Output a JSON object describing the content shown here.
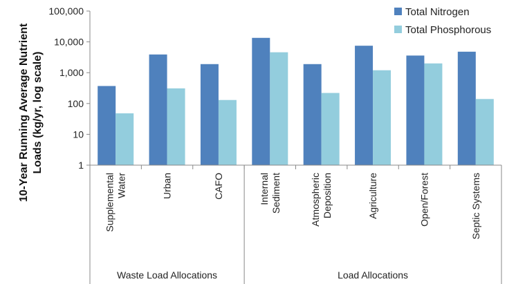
{
  "chart_data": {
    "type": "bar",
    "ylabel": "10-Year Running Average Nutrient Loads (kg/yr, log scale)",
    "ylabel_lines": [
      "10-Year Running Average Nutrient",
      "Loads (kg/yr, log scale)"
    ],
    "y_scale": "log",
    "ylim": [
      1,
      100000
    ],
    "y_ticks": [
      {
        "value": 100000,
        "label": "100,000"
      },
      {
        "value": 10000,
        "label": "10,000"
      },
      {
        "value": 1000,
        "label": "1,000"
      },
      {
        "value": 100,
        "label": "100"
      },
      {
        "value": 10,
        "label": "10"
      },
      {
        "value": 1,
        "label": "1"
      }
    ],
    "categories": [
      {
        "name": "Supplemental Water",
        "lines": [
          "Supplemental",
          "Water"
        ]
      },
      {
        "name": "Urban",
        "lines": [
          "Urban"
        ]
      },
      {
        "name": "CAFO",
        "lines": [
          "CAFO"
        ]
      },
      {
        "name": "Internal Sediment",
        "lines": [
          "Internal",
          "Sediment"
        ]
      },
      {
        "name": "Atmospheric Deposition",
        "lines": [
          "Atmospheric",
          "Deposition"
        ]
      },
      {
        "name": "Agriculture",
        "lines": [
          "Agriculture"
        ]
      },
      {
        "name": "Open/Forest",
        "lines": [
          "Open/Forest"
        ]
      },
      {
        "name": "Septic Systems",
        "lines": [
          "Septic Systems"
        ]
      }
    ],
    "groups": [
      {
        "label": "Waste Load Allocations",
        "categories": [
          "Supplemental Water",
          "Urban",
          "CAFO"
        ]
      },
      {
        "label": "Load Allocations",
        "categories": [
          "Internal Sediment",
          "Atmospheric Deposition",
          "Agriculture",
          "Open/Forest",
          "Septic Systems"
        ]
      }
    ],
    "series": [
      {
        "name": "Total Nitrogen",
        "color": "#4f81bd",
        "values": [
          370,
          3900,
          1900,
          13500,
          1900,
          7500,
          3600,
          4800
        ]
      },
      {
        "name": "Total Phosphorous",
        "color": "#93cddd",
        "values": [
          48,
          310,
          130,
          4600,
          220,
          1200,
          2000,
          140
        ]
      }
    ],
    "legend_position": "top-right",
    "grid": false
  }
}
